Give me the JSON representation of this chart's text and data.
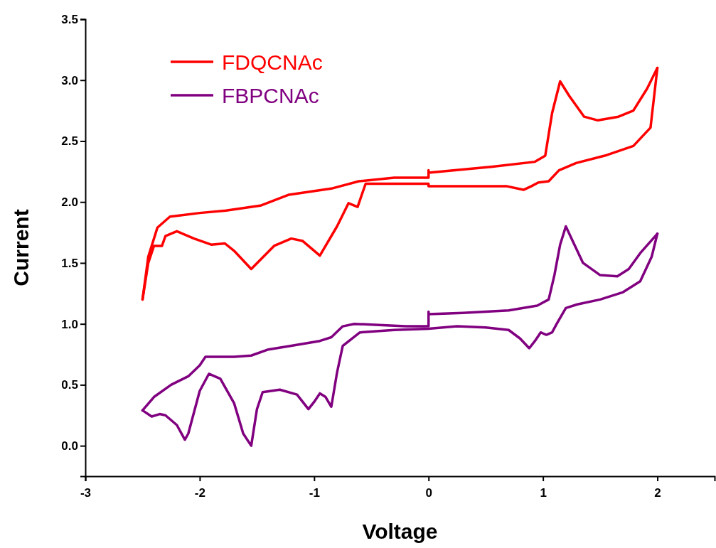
{
  "chart_data": {
    "type": "line",
    "xlabel": "Voltage",
    "ylabel": "Current",
    "xlim": [
      -3,
      2.5
    ],
    "ylim": [
      -0.25,
      3.5
    ],
    "xticks": [
      -3,
      -2,
      -1,
      0,
      1,
      2
    ],
    "yticks": [
      {
        "value": 0,
        "label": "0.0"
      },
      {
        "value": 0.5,
        "label": "0.5"
      },
      {
        "value": 1,
        "label": "1.0"
      },
      {
        "value": 1.5,
        "label": "1.5"
      },
      {
        "value": 2,
        "label": "2.0"
      },
      {
        "value": 2.5,
        "label": "2.5"
      },
      {
        "value": 3,
        "label": "3.0"
      },
      {
        "value": 3.5,
        "label": "3.5"
      }
    ],
    "grid": false,
    "legend": "top left",
    "marker": "none",
    "line_style": "solid",
    "series": [
      {
        "name": "FDQCNAc",
        "color": "#ff0000",
        "x": [
          -2.5,
          -2.45,
          -2.37,
          -2.26,
          -2.0,
          -1.77,
          -1.47,
          -1.22,
          -0.85,
          -0.61,
          -0.3,
          0,
          0,
          0,
          0.56,
          0.93,
          1.02,
          1.08,
          1.15,
          1.23,
          1.36,
          1.48,
          1.66,
          1.79,
          1.91,
          2.0
        ],
        "values": [
          1.2,
          1.55,
          1.79,
          1.88,
          1.91,
          1.93,
          1.97,
          2.06,
          2.11,
          2.17,
          2.2,
          2.2,
          2.26,
          2.24,
          2.29,
          2.33,
          2.38,
          2.73,
          2.99,
          2.87,
          2.7,
          2.67,
          2.7,
          2.75,
          2.93,
          3.1
        ]
      },
      {
        "color": "#ff0000",
        "x": [
          2.0,
          1.94,
          1.79,
          1.54,
          1.29,
          1.14,
          1.05,
          0.96,
          0.9,
          0.83,
          0.68,
          0.25,
          0,
          0,
          -0.3,
          -0.55,
          -0.62,
          -0.7,
          -0.8,
          -0.95,
          -1.1,
          -1.2,
          -1.35,
          -1.55,
          -1.7,
          -1.78,
          -1.9,
          -2.05,
          -2.2,
          -2.3,
          -2.33,
          -2.4,
          -2.45,
          -2.5
        ],
        "values": [
          3.1,
          2.61,
          2.46,
          2.38,
          2.32,
          2.26,
          2.17,
          2.16,
          2.13,
          2.1,
          2.13,
          2.13,
          2.13,
          2.15,
          2.15,
          2.15,
          1.96,
          1.99,
          1.8,
          1.56,
          1.68,
          1.7,
          1.64,
          1.45,
          1.6,
          1.66,
          1.65,
          1.7,
          1.76,
          1.72,
          1.64,
          1.64,
          1.5,
          1.2
        ]
      },
      {
        "name": "FBPCNAc",
        "color": "#800080",
        "x": [
          -2.5,
          -2.4,
          -2.25,
          -2.1,
          -2.0,
          -1.95,
          -1.7,
          -1.55,
          -1.4,
          -1.2,
          -0.95,
          -0.85,
          -0.75,
          -0.65,
          -0.4,
          -0.2,
          0,
          0,
          0,
          0.3,
          0.7,
          0.95,
          1.05,
          1.1,
          1.15,
          1.2,
          1.25,
          1.35,
          1.5,
          1.65,
          1.75,
          1.85,
          2.0
        ],
        "values": [
          0.29,
          0.4,
          0.5,
          0.57,
          0.66,
          0.73,
          0.73,
          0.74,
          0.79,
          0.82,
          0.86,
          0.89,
          0.98,
          1.0,
          0.99,
          0.98,
          0.98,
          1.1,
          1.08,
          1.09,
          1.11,
          1.15,
          1.2,
          1.4,
          1.65,
          1.8,
          1.7,
          1.5,
          1.4,
          1.39,
          1.45,
          1.58,
          1.74
        ]
      },
      {
        "color": "#800080",
        "x": [
          2.0,
          1.95,
          1.85,
          1.7,
          1.5,
          1.3,
          1.2,
          1.12,
          1.08,
          1.03,
          0.98,
          0.93,
          0.88,
          0.8,
          0.7,
          0.5,
          0.25,
          0,
          -0.3,
          -0.6,
          -0.75,
          -0.8,
          -0.85,
          -0.9,
          -0.95,
          -1.0,
          -1.05,
          -1.15,
          -1.3,
          -1.45,
          -1.5,
          -1.55,
          -1.62,
          -1.7,
          -1.82,
          -1.92,
          -2.0,
          -2.1,
          -2.13,
          -2.2,
          -2.3,
          -2.35,
          -2.42,
          -2.5
        ],
        "values": [
          1.74,
          1.55,
          1.35,
          1.26,
          1.2,
          1.16,
          1.13,
          1.0,
          0.93,
          0.91,
          0.93,
          0.86,
          0.8,
          0.88,
          0.95,
          0.97,
          0.98,
          0.96,
          0.95,
          0.93,
          0.82,
          0.6,
          0.32,
          0.4,
          0.43,
          0.36,
          0.3,
          0.42,
          0.46,
          0.44,
          0.3,
          0.0,
          0.1,
          0.35,
          0.55,
          0.59,
          0.45,
          0.1,
          0.05,
          0.17,
          0.25,
          0.26,
          0.24,
          0.29
        ]
      }
    ]
  }
}
